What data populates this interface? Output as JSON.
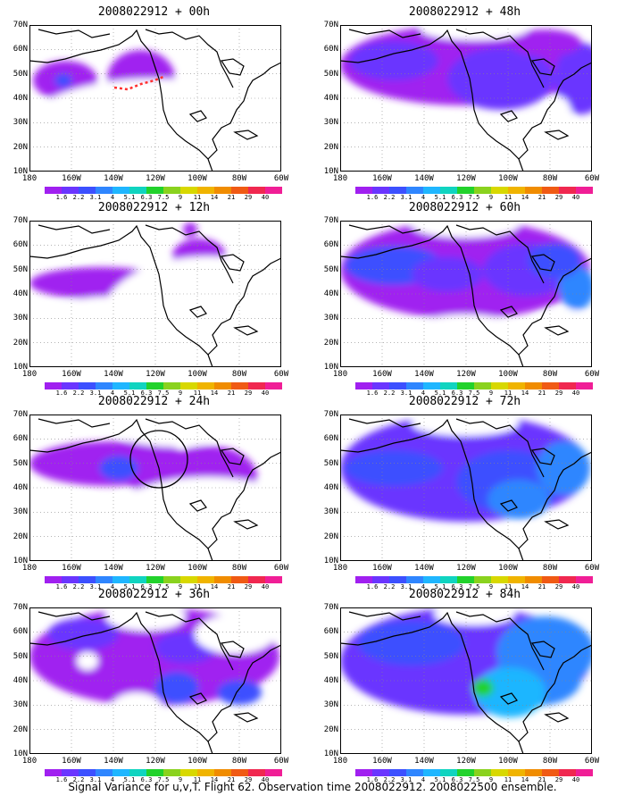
{
  "caption": "Signal Variance for u,v,T. Flight 62. Observation time 2008022912. 2008022500 ensemble.",
  "lat_labels": [
    "70N",
    "60N",
    "50N",
    "40N",
    "30N",
    "20N",
    "10N"
  ],
  "lon_labels": [
    "180",
    "160W",
    "140W",
    "120W",
    "100W",
    "80W",
    "60W"
  ],
  "colorbar": {
    "colors": [
      "#a020f0",
      "#6a35ff",
      "#3c50ff",
      "#2f86ff",
      "#1fb6ff",
      "#10d4c0",
      "#22d22c",
      "#8ad21e",
      "#d8d800",
      "#f0b400",
      "#f08c00",
      "#f05a14",
      "#f02850",
      "#f01e96"
    ],
    "labels": [
      "1.6",
      "2.2",
      "3.1",
      "4",
      "5.1",
      "6.3",
      "7.5",
      "9",
      "11",
      "14",
      "21",
      "29",
      "40"
    ]
  },
  "panels": [
    {
      "id": "p00",
      "title": "2008022912 + 00h",
      "marker": "track"
    },
    {
      "id": "p48",
      "title": "2008022912 + 48h",
      "marker": ""
    },
    {
      "id": "p12",
      "title": "2008022912 + 12h",
      "marker": ""
    },
    {
      "id": "p60",
      "title": "2008022912 + 60h",
      "marker": ""
    },
    {
      "id": "p24",
      "title": "2008022912 + 24h",
      "marker": "circle"
    },
    {
      "id": "p72",
      "title": "2008022912 + 72h",
      "marker": ""
    },
    {
      "id": "p36",
      "title": "2008022912 + 36h",
      "marker": ""
    },
    {
      "id": "p84",
      "title": "2008022912 + 84h",
      "marker": ""
    }
  ]
}
